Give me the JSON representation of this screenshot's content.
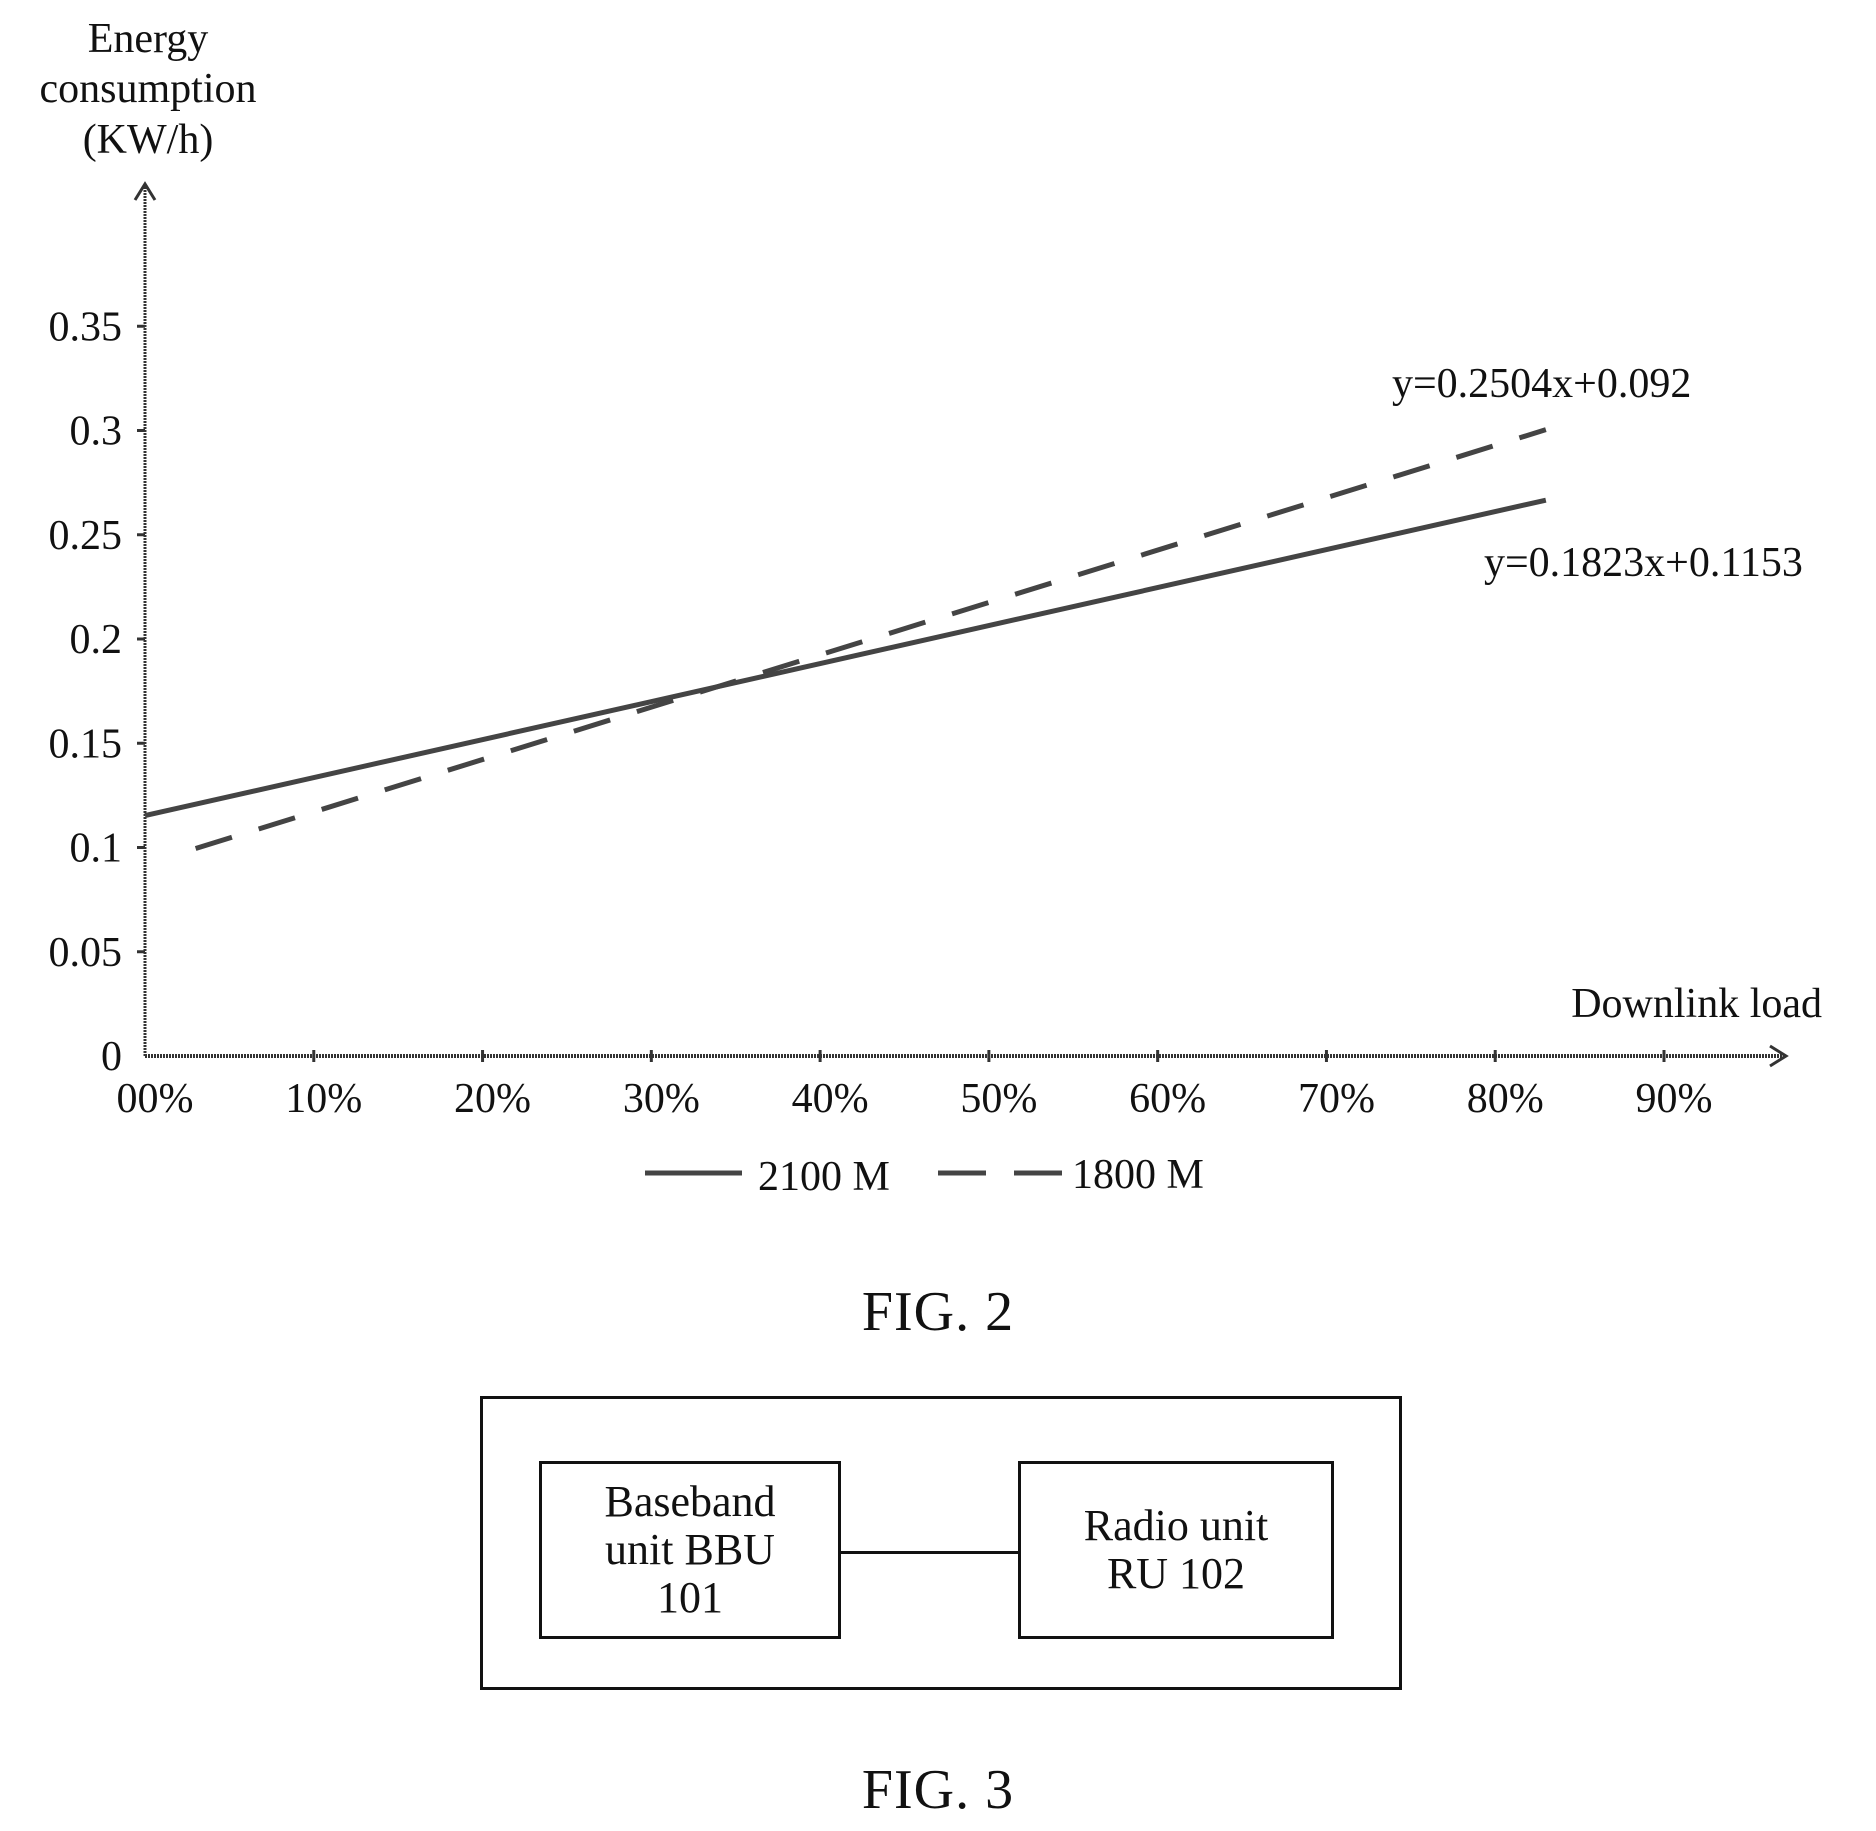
{
  "fig2": {
    "caption": "FIG. 2",
    "chart_data": {
      "type": "line",
      "ylabel": [
        "Energy",
        "consumption",
        "(KW/h)"
      ],
      "xlabel": "Downlink load",
      "ylim": [
        0,
        0.4
      ],
      "xlim": [
        0,
        0.95
      ],
      "y_ticks": [
        0,
        0.05,
        0.1,
        0.15,
        0.2,
        0.25,
        0.3,
        0.35
      ],
      "y_tick_labels": [
        "0",
        "0.05",
        "0.1",
        "0.15",
        "0.2",
        "0.25",
        "0.3",
        "0.35"
      ],
      "x_ticks": [
        0,
        0.1,
        0.2,
        0.3,
        0.4,
        0.5,
        0.6,
        0.7,
        0.8,
        0.9
      ],
      "x_tick_labels": [
        "00%",
        "10%",
        "20%",
        "30%",
        "40%",
        "50%",
        "60%",
        "70%",
        "80%",
        "90%"
      ],
      "series": [
        {
          "name": "2100 M",
          "style": "solid",
          "equation": "y=0.1823x+0.1153",
          "x": [
            0.0,
            0.83
          ],
          "y": [
            0.1153,
            0.2666
          ]
        },
        {
          "name": "1800 M",
          "style": "dashed",
          "equation": "y=0.2504x+0.092",
          "x": [
            0.03,
            0.83
          ],
          "y": [
            0.0995,
            0.3004
          ]
        }
      ],
      "legend_position": "bottom-center",
      "grid": false
    }
  },
  "fig3": {
    "caption": "FIG. 3",
    "bbu_label": [
      "Baseband",
      "unit BBU",
      "101"
    ],
    "ru_label": [
      "Radio unit",
      "RU 102"
    ]
  }
}
